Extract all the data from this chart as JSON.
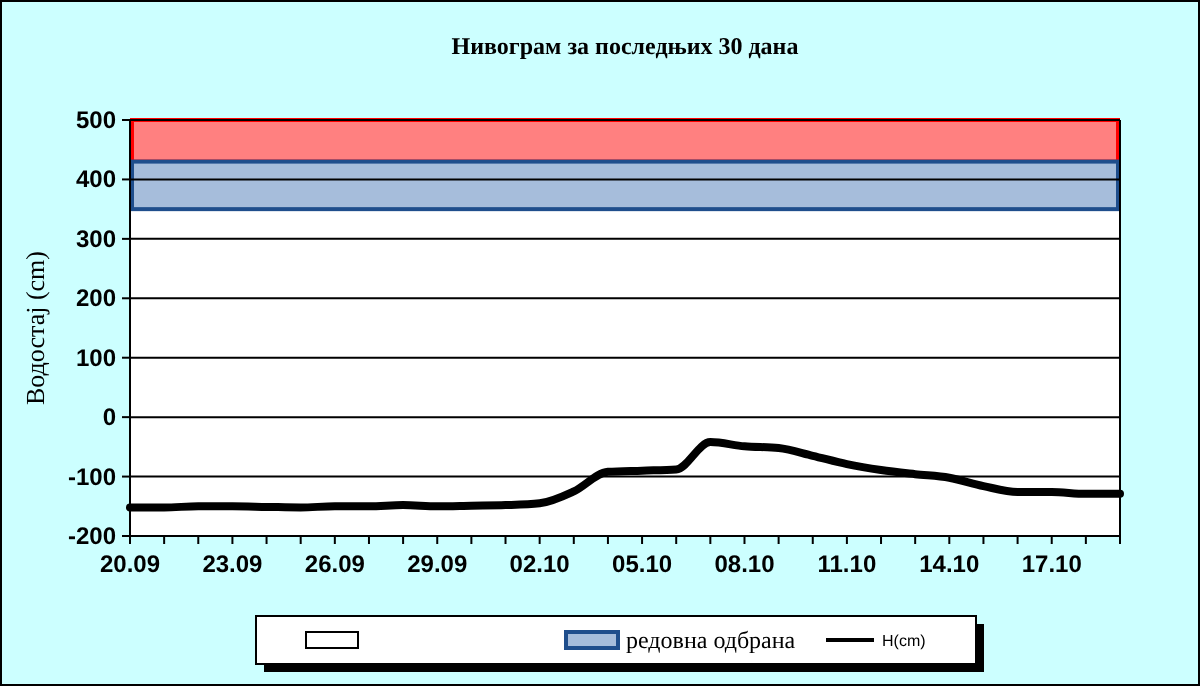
{
  "chart_data": {
    "type": "line",
    "title": "Нивограм за последњих 30 дана",
    "ylabel": "Водостај (cm)",
    "categories": [
      "20.09",
      null,
      null,
      "23.09",
      null,
      null,
      "26.09",
      null,
      null,
      "29.09",
      null,
      null,
      "02.10",
      null,
      null,
      "05.10",
      null,
      null,
      "08.10",
      null,
      null,
      "11.10",
      null,
      null,
      "14.10",
      null,
      null,
      "17.10",
      null,
      null
    ],
    "series": [
      {
        "name": "H(cm)",
        "color": "#000000",
        "values": [
          -152,
          -152,
          -150,
          -150,
          -151,
          -152,
          -150,
          -150,
          -148,
          -150,
          -149,
          -148,
          -145,
          -125,
          -92,
          -90,
          -88,
          -42,
          -49,
          -52,
          -65,
          -79,
          -89,
          -96,
          -102,
          -116,
          -126,
          -126,
          -129,
          -129
        ]
      }
    ],
    "bands": [
      {
        "axis": "y",
        "from": 430,
        "to": 500,
        "color": "#ff8080"
      },
      {
        "axis": "y",
        "from": 350,
        "to": 430,
        "label": "редовна одбрана",
        "color": "#a6bddb"
      }
    ],
    "ylim": [
      -200,
      500
    ],
    "yticks": [
      -200,
      -100,
      0,
      100,
      200,
      300,
      400,
      500
    ],
    "grid": "y",
    "legend": "bottom",
    "marker": "none",
    "line_style": "solid"
  }
}
